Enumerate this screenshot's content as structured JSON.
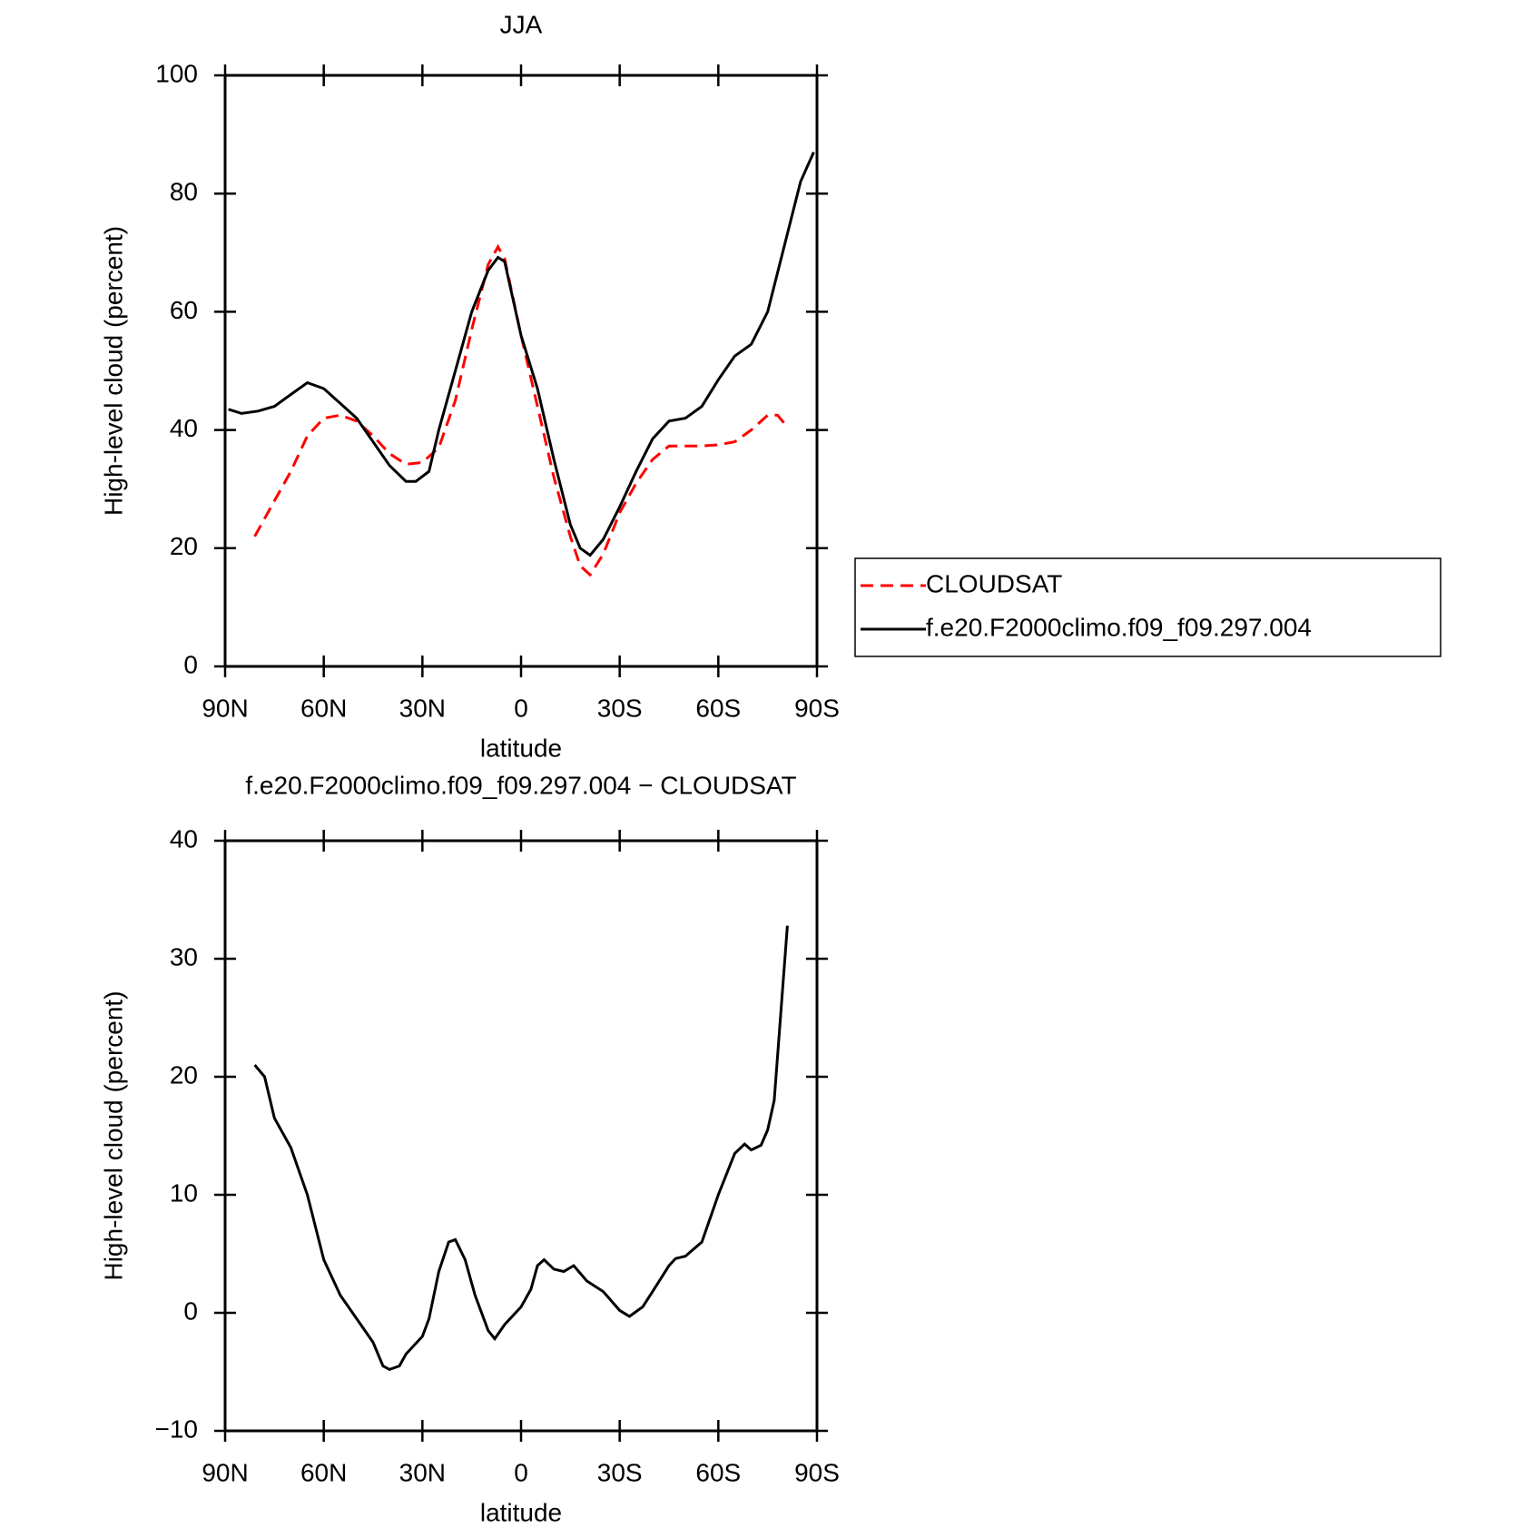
{
  "chart_data": [
    {
      "type": "line",
      "title": "JJA",
      "xlabel": "latitude",
      "ylabel": "High-level cloud (percent)",
      "xlim": [
        90,
        -90
      ],
      "ylim": [
        0,
        100
      ],
      "xticks": [
        {
          "value": 90,
          "label": "90N"
        },
        {
          "value": 60,
          "label": "60N"
        },
        {
          "value": 30,
          "label": "30N"
        },
        0,
        {
          "value": -30,
          "label": "30S"
        },
        {
          "value": -60,
          "label": "60S"
        },
        {
          "value": -90,
          "label": "90S"
        }
      ],
      "yticks": [
        0,
        20,
        40,
        60,
        80,
        100
      ],
      "legend": "right",
      "series": [
        {
          "name": "CLOUDSAT",
          "color": "#ff0000",
          "linestyle": "dashed",
          "x": [
            81,
            75,
            70,
            65,
            60,
            55,
            50,
            45,
            40,
            35,
            30,
            25,
            20,
            15,
            10,
            7,
            5,
            0,
            -5,
            -10,
            -15,
            -18,
            -21,
            -25,
            -30,
            -35,
            -40,
            -45,
            -50,
            -55,
            -60,
            -65,
            -70,
            -75,
            -78,
            -81
          ],
          "values": [
            22,
            28,
            33,
            39,
            42,
            42.5,
            41.5,
            39,
            36,
            34.2,
            34.5,
            37,
            45,
            57,
            68,
            71,
            69,
            56,
            44,
            32,
            22,
            17,
            15.5,
            19,
            26,
            31,
            35,
            37.3,
            37.3,
            37.3,
            37.5,
            38,
            40,
            42.5,
            42.5,
            40.5
          ]
        },
        {
          "name": "f.e20.F2000climo.f09_f09.297.004",
          "color": "#000000",
          "linestyle": "solid",
          "x": [
            89,
            85,
            80,
            75,
            70,
            65,
            60,
            55,
            50,
            45,
            40,
            35,
            32,
            28,
            25,
            20,
            15,
            10,
            7,
            5,
            0,
            -5,
            -10,
            -15,
            -18,
            -21,
            -25,
            -30,
            -35,
            -40,
            -45,
            -50,
            -55,
            -60,
            -65,
            -70,
            -75,
            -80,
            -85,
            -89
          ],
          "values": [
            43.5,
            42.8,
            43.2,
            44,
            46,
            48,
            47,
            44.5,
            42,
            38,
            34,
            31.3,
            31.3,
            33,
            40,
            50,
            60,
            67,
            69.2,
            68.5,
            56,
            47,
            35,
            24,
            20,
            18.8,
            21.5,
            27,
            33,
            38.5,
            41.5,
            42,
            44,
            48.5,
            52.5,
            54.5,
            60,
            71,
            82,
            87
          ]
        }
      ]
    },
    {
      "type": "line",
      "title": "f.e20.F2000climo.f09_f09.297.004 − CLOUDSAT",
      "xlabel": "latitude",
      "ylabel": "High-level cloud (percent)",
      "xlim": [
        90,
        -90
      ],
      "ylim": [
        -10,
        40
      ],
      "xticks": [
        {
          "value": 90,
          "label": "90N"
        },
        {
          "value": 60,
          "label": "60N"
        },
        {
          "value": 30,
          "label": "30N"
        },
        0,
        {
          "value": -30,
          "label": "30S"
        },
        {
          "value": -60,
          "label": "60S"
        },
        {
          "value": -90,
          "label": "90S"
        }
      ],
      "yticks": [
        {
          "value": -10,
          "label": "−10"
        },
        0,
        10,
        20,
        30,
        40
      ],
      "series": [
        {
          "color": "#000000",
          "linestyle": "solid",
          "x": [
            81,
            78,
            75,
            70,
            65,
            60,
            55,
            50,
            45,
            42,
            40,
            37,
            35,
            30,
            28,
            25,
            22,
            20,
            17,
            14,
            10,
            8,
            5,
            0,
            -3,
            -5,
            -7,
            -10,
            -13,
            -16,
            -20,
            -25,
            -30,
            -33,
            -37,
            -40,
            -45,
            -47,
            -50,
            -55,
            -60,
            -65,
            -68,
            -70,
            -73,
            -75,
            -77,
            -81
          ],
          "values": [
            21,
            20,
            16.5,
            14,
            10,
            4.5,
            1.5,
            -0.5,
            -2.5,
            -4.5,
            -4.8,
            -4.5,
            -3.5,
            -2,
            -0.5,
            3.5,
            6,
            6.2,
            4.5,
            1.5,
            -1.5,
            -2.2,
            -1,
            0.5,
            2,
            4,
            4.5,
            3.7,
            3.5,
            4,
            2.7,
            1.8,
            0.2,
            -0.3,
            0.5,
            1.8,
            4,
            4.6,
            4.8,
            6,
            10,
            13.5,
            14.3,
            13.8,
            14.2,
            15.5,
            18,
            32.8
          ]
        }
      ]
    }
  ]
}
